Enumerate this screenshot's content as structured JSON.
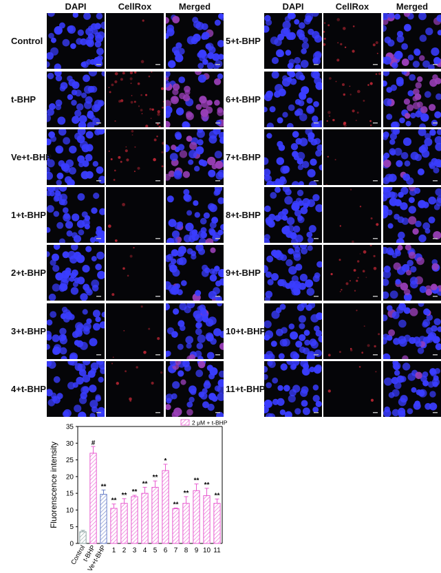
{
  "columns": [
    "DAPI",
    "CellRox",
    "Merged"
  ],
  "left_rows": [
    {
      "label": "Control",
      "red": 0.05
    },
    {
      "label": "t-BHP",
      "red": 0.9
    },
    {
      "label": "Ve+t-BHP",
      "red": 0.5
    },
    {
      "label": "1+t-BHP",
      "red": 0.08
    },
    {
      "label": "2+t-BHP",
      "red": 0.12
    },
    {
      "label": "3+t-BHP",
      "red": 0.15
    },
    {
      "label": "4+t-BHP",
      "red": 0.2
    }
  ],
  "right_rows": [
    {
      "label": "5+t-BHP",
      "red": 0.4
    },
    {
      "label": "6+t-BHP",
      "red": 0.6
    },
    {
      "label": "7+t-BHP",
      "red": 0.08
    },
    {
      "label": "8+t-BHP",
      "red": 0.15
    },
    {
      "label": "9+t-BHP",
      "red": 0.45
    },
    {
      "label": "10+t-BHP",
      "red": 0.25
    },
    {
      "label": "11+t-BHP",
      "red": 0.1
    }
  ],
  "colors": {
    "dapi": "#3a3dff",
    "cellrox": "#d42b3a",
    "bar_pink": "#e85bd0",
    "bar_blue": "#6a7fc8",
    "bar_grey": "#8aa0a0"
  },
  "chart_data": {
    "type": "bar",
    "ylabel": "Fluorenscence intensity",
    "ylim": [
      0,
      35
    ],
    "yticks": [
      0,
      5,
      10,
      15,
      20,
      25,
      30,
      35
    ],
    "legend": "2 μM + t-BHP",
    "legend_position": "top-right",
    "categories": [
      "Control",
      "t-BHP",
      "Ve+t-BHP",
      "1",
      "2",
      "3",
      "4",
      "5",
      "6",
      "7",
      "8",
      "9",
      "10",
      "11"
    ],
    "values": [
      3.5,
      27,
      14.7,
      10.5,
      12,
      14,
      15,
      16.8,
      21.8,
      10.4,
      12,
      15.8,
      14.3,
      12
    ],
    "errors": [
      0.4,
      2.0,
      1.3,
      1.3,
      1.4,
      0.4,
      1.8,
      1.9,
      1.9,
      0.2,
      2.0,
      2.0,
      2.2,
      1.3
    ],
    "annotations": [
      "",
      "#",
      "**",
      "**",
      "**",
      "**",
      "**",
      "**",
      "*",
      "**",
      "**",
      "**",
      "**",
      "**"
    ],
    "bar_styles": [
      "grey",
      "pink",
      "blue",
      "pink",
      "pink",
      "pink",
      "pink",
      "pink",
      "pink",
      "pink",
      "pink",
      "pink",
      "pink",
      "pink"
    ]
  }
}
